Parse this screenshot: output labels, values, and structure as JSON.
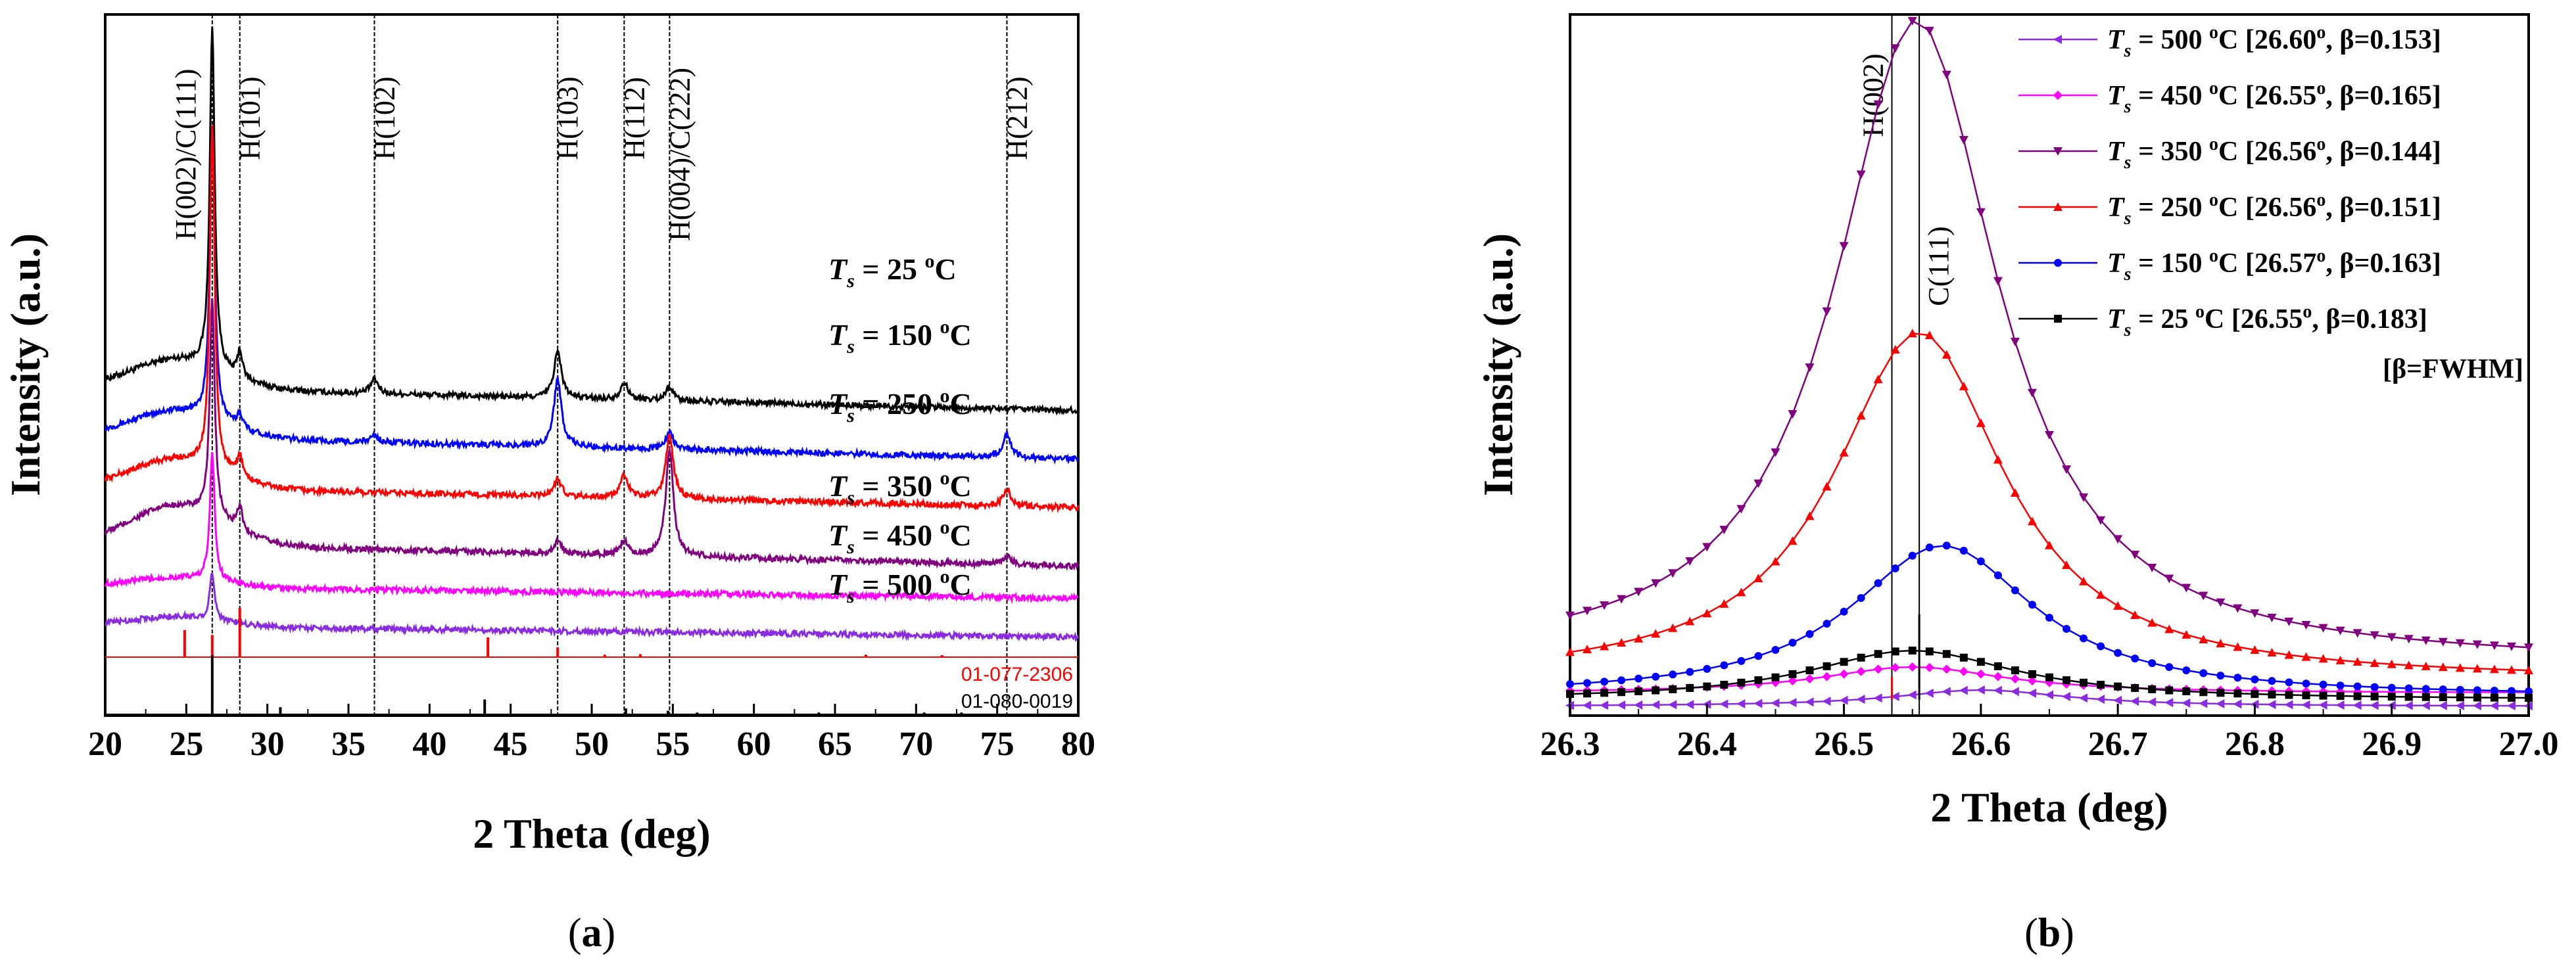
{
  "chart_data": [
    {
      "panel": "a",
      "type": "line",
      "xlabel": "2 Theta (deg)",
      "ylabel": "Intensity (a.u.)",
      "xlim": [
        20,
        80
      ],
      "xticks": [
        20,
        25,
        30,
        35,
        40,
        45,
        50,
        55,
        60,
        65,
        70,
        75,
        80
      ],
      "peak_lines": [
        {
          "label": "H(002)/C(111)",
          "x": 26.6
        },
        {
          "label": "H(101)",
          "x": 28.3
        },
        {
          "label": "H(102)",
          "x": 36.6
        },
        {
          "label": "H(103)",
          "x": 47.9
        },
        {
          "label": "H(112)",
          "x": 52.0
        },
        {
          "label": "H(004)/C(222)",
          "x": 54.8
        },
        {
          "label": "H(212)",
          "x": 75.6
        }
      ],
      "series": [
        {
          "name": "Ts = 25 oC",
          "sub": "s",
          "rest": " = 25 ",
          "sup": "o",
          "unit": "C",
          "color": "#000000",
          "baseline": 5.55,
          "slope": 0.008,
          "hump": 0.6,
          "peaks": [
            {
              "x": 26.6,
              "h": 7.0
            },
            {
              "x": 28.3,
              "h": 0.55
            },
            {
              "x": 36.6,
              "h": 0.3
            },
            {
              "x": 47.9,
              "h": 0.95
            },
            {
              "x": 52.0,
              "h": 0.35
            },
            {
              "x": 54.8,
              "h": 0.3
            }
          ]
        },
        {
          "name": "Ts = 150 oC",
          "sub": "s",
          "rest": " = 150 ",
          "sup": "o",
          "unit": "C",
          "color": "#0000ff",
          "baseline": 4.55,
          "slope": 0.008,
          "hump": 0.55,
          "peaks": [
            {
              "x": 26.6,
              "h": 6.0
            },
            {
              "x": 28.3,
              "h": 0.3
            },
            {
              "x": 36.6,
              "h": 0.15
            },
            {
              "x": 47.9,
              "h": 1.4
            },
            {
              "x": 54.8,
              "h": 0.35
            },
            {
              "x": 75.6,
              "h": 0.5
            }
          ]
        },
        {
          "name": "Ts = 250 oC",
          "sub": "s",
          "rest": " = 250 ",
          "sup": "o",
          "unit": "C",
          "color": "#ff0000",
          "baseline": 3.5,
          "slope": 0.007,
          "hump": 0.6,
          "peaks": [
            {
              "x": 26.6,
              "h": 7.0
            },
            {
              "x": 28.3,
              "h": 0.45
            },
            {
              "x": 47.9,
              "h": 0.35
            },
            {
              "x": 52.0,
              "h": 0.45
            },
            {
              "x": 54.8,
              "h": 1.3
            },
            {
              "x": 75.6,
              "h": 0.35
            }
          ]
        },
        {
          "name": "Ts = 350 oC",
          "sub": "s",
          "rest": " = 350 ",
          "sup": "o",
          "unit": "C",
          "color": "#800080",
          "baseline": 2.35,
          "slope": 0.008,
          "hump": 0.8,
          "peaks": [
            {
              "x": 26.6,
              "h": 4.5
            },
            {
              "x": 28.3,
              "h": 0.5
            },
            {
              "x": 47.9,
              "h": 0.25
            },
            {
              "x": 52.0,
              "h": 0.3
            },
            {
              "x": 54.8,
              "h": 2.2
            },
            {
              "x": 75.6,
              "h": 0.2
            }
          ]
        },
        {
          "name": "Ts = 450 oC",
          "sub": "s",
          "rest": " = 450 ",
          "sup": "o",
          "unit": "C",
          "color": "#ff00ff",
          "baseline": 1.45,
          "slope": 0.004,
          "hump": 0.2,
          "peaks": [
            {
              "x": 26.6,
              "h": 2.6
            }
          ]
        },
        {
          "name": "Ts = 500 oC",
          "sub": "s",
          "rest": " = 500 ",
          "sup": "o",
          "unit": "C",
          "color": "#8a2be2",
          "baseline": 0.65,
          "slope": 0.004,
          "hump": 0.2,
          "peaks": [
            {
              "x": 26.6,
              "h": 0.95
            }
          ]
        }
      ],
      "reference_patterns": [
        {
          "label": "01-077-2306",
          "color": "#ff0000",
          "sticks": [
            [
              24.9,
              0.55
            ],
            [
              26.6,
              0.45
            ],
            [
              28.3,
              1.0
            ],
            [
              43.6,
              0.4
            ],
            [
              47.9,
              0.2
            ],
            [
              50.8,
              0.05
            ],
            [
              53.0,
              0.06
            ],
            [
              66.9,
              0.05
            ],
            [
              71.6,
              0.04
            ]
          ]
        },
        {
          "label": "01-080-0019",
          "color": "#000000",
          "sticks": [
            [
              26.6,
              1.0
            ],
            [
              30.8,
              0.12
            ],
            [
              43.4,
              0.25
            ],
            [
              52.1,
              0.1
            ],
            [
              54.7,
              0.06
            ],
            [
              56.5,
              0.03
            ],
            [
              64.0,
              0.03
            ],
            [
              70.5,
              0.03
            ],
            [
              72.8,
              0.03
            ]
          ]
        }
      ]
    },
    {
      "panel": "b",
      "type": "line",
      "xlabel": "2 Theta (deg)",
      "ylabel": "Intensity (a.u.)",
      "xlim": [
        26.3,
        27.0
      ],
      "xticks": [
        "26.3",
        "26.4",
        "26.5",
        "26.6",
        "26.7",
        "26.8",
        "26.9",
        "27.0"
      ],
      "peak_lines": [
        {
          "label": "H(002)",
          "x": 26.535
        },
        {
          "label": "C(111)",
          "x": 26.555
        }
      ],
      "series": [
        {
          "prefix": "T",
          "sub": "s",
          "rest": " = 500 ",
          "sup": "o",
          "unit": "C [26.60",
          "sup2": "o",
          "tail": ", β=0.153]",
          "color": "#8a2be2",
          "marker": "tri-left",
          "center": 26.6,
          "fwhm": 0.153,
          "height": 0.25,
          "base": 0.1
        },
        {
          "prefix": "T",
          "sub": "s",
          "rest": " = 450 ",
          "sup": "o",
          "unit": "C [26.55",
          "sup2": "o",
          "tail": ", β=0.165]",
          "color": "#ff00ff",
          "marker": "diamond",
          "center": 26.55,
          "fwhm": 0.165,
          "height": 0.4,
          "base": 0.3
        },
        {
          "prefix": "T",
          "sub": "s",
          "rest": " = 350 ",
          "sup": "o",
          "unit": "C [26.56",
          "sup2": "o",
          "tail": ", β=0.144]",
          "color": "#800080",
          "marker": "tri-down",
          "center": 26.553,
          "fwhm": 0.144,
          "height": 9.8,
          "base": 0.75
        },
        {
          "prefix": "T",
          "sub": "s",
          "rest": " = 250 ",
          "sup": "o",
          "unit": "C [26.56",
          "sup2": "o",
          "tail": ", β=0.151]",
          "color": "#ff0000",
          "marker": "tri-up",
          "center": 26.555,
          "fwhm": 0.151,
          "height": 5.3,
          "base": 0.5
        },
        {
          "prefix": "T",
          "sub": "s",
          "rest": " = 150 ",
          "sup": "o",
          "unit": "C [26.57",
          "sup2": "o",
          "tail": ", β=0.163]",
          "color": "#0000ff",
          "marker": "circle",
          "center": 26.572,
          "fwhm": 0.163,
          "height": 2.3,
          "base": 0.25
        },
        {
          "prefix": "T",
          "sub": "s",
          "rest": " = 25 ",
          "sup": "o",
          "unit": "C   [26.55",
          "sup2": "o",
          "tail": ", β=0.183]",
          "color": "#000000",
          "marker": "square",
          "center": 26.55,
          "fwhm": 0.183,
          "height": 0.75,
          "base": 0.2
        }
      ],
      "legend_note": "[β=FWHM]"
    }
  ],
  "panel_labels": [
    "(a)",
    "(b)"
  ],
  "panel_label_letters": [
    "a",
    "b"
  ]
}
